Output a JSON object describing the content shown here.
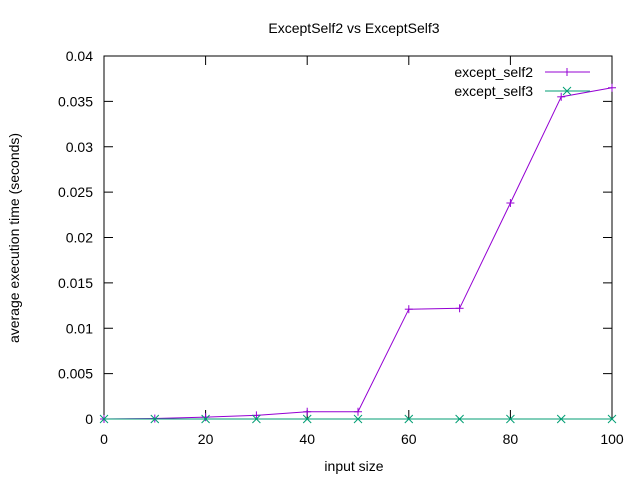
{
  "chart_data": {
    "type": "line",
    "title": "ExceptSelf2 vs ExceptSelf3",
    "xlabel": "input size",
    "ylabel": "average execution time (seconds)",
    "xlim": [
      0,
      100
    ],
    "ylim": [
      0,
      0.04
    ],
    "xticks": [
      0,
      20,
      40,
      60,
      80,
      100
    ],
    "yticks": [
      0,
      0.005,
      0.01,
      0.015,
      0.02,
      0.025,
      0.03,
      0.035,
      0.04
    ],
    "xtick_labels": [
      "0",
      "20",
      "40",
      "60",
      "80",
      "100"
    ],
    "ytick_labels": [
      "0",
      "0.005",
      "0.01",
      "0.015",
      "0.02",
      "0.025",
      "0.03",
      "0.035",
      "0.04"
    ],
    "grid": false,
    "legend_position": "top-right",
    "series": [
      {
        "name": "except_self2",
        "color": "#9400d3",
        "marker": "plus",
        "x": [
          0,
          10,
          20,
          30,
          40,
          50,
          60,
          70,
          80,
          90,
          100
        ],
        "y": [
          0.0,
          5e-05,
          0.0002,
          0.0004,
          0.0008,
          0.0008,
          0.0121,
          0.0122,
          0.0238,
          0.0355,
          0.0365
        ]
      },
      {
        "name": "except_self3",
        "color": "#009e73",
        "marker": "cross",
        "x": [
          0,
          10,
          20,
          30,
          40,
          50,
          60,
          70,
          80,
          90,
          100
        ],
        "y": [
          0.0,
          0.0,
          0.0,
          0.0,
          0.0,
          0.0,
          0.0,
          0.0,
          0.0,
          0.0,
          0.0
        ]
      }
    ]
  }
}
